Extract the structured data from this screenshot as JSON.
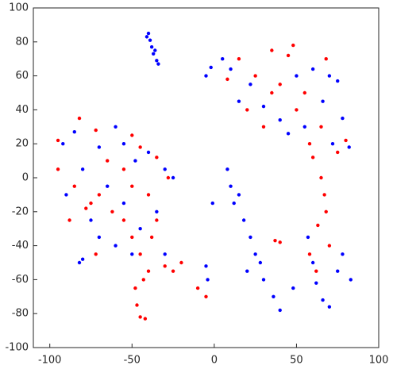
{
  "chart_data": {
    "type": "scatter",
    "xlim": [
      -110,
      100
    ],
    "ylim": [
      -100,
      100
    ],
    "xticks": [
      -100,
      -50,
      0,
      50,
      100
    ],
    "yticks": [
      -100,
      -80,
      -60,
      -40,
      -20,
      0,
      20,
      40,
      60,
      80,
      100
    ],
    "series": [
      {
        "color": "#0000ff",
        "x": [
          -40,
          -39,
          -38,
          -37,
          -35,
          -34,
          -41,
          -36,
          -5,
          -2,
          5,
          10,
          60,
          70,
          75,
          40,
          55,
          82,
          72,
          45,
          30,
          15,
          22,
          66,
          78,
          50,
          -92,
          -85,
          -70,
          -60,
          -55,
          -48,
          -40,
          -30,
          -25,
          -80,
          -90,
          -75,
          -65,
          -55,
          -45,
          -35,
          -60,
          -50,
          -70,
          -82,
          -80,
          -30,
          -5,
          -4,
          8,
          10,
          12,
          18,
          22,
          25,
          20,
          30,
          36,
          40,
          -1,
          15,
          57,
          60,
          62,
          66,
          70,
          75,
          78,
          83,
          48,
          28
        ],
        "y": [
          85,
          81,
          77,
          73,
          69,
          67,
          83,
          75,
          60,
          65,
          70,
          64,
          64,
          60,
          57,
          34,
          30,
          18,
          20,
          26,
          42,
          45,
          55,
          45,
          35,
          60,
          20,
          27,
          18,
          30,
          20,
          10,
          15,
          5,
          0,
          5,
          -10,
          -25,
          -5,
          -15,
          -30,
          -20,
          -40,
          -45,
          -35,
          -50,
          -48,
          -45,
          -52,
          -60,
          5,
          -5,
          -15,
          -25,
          -35,
          -45,
          -55,
          -60,
          -70,
          -78,
          -15,
          -10,
          -35,
          -50,
          -62,
          -72,
          -76,
          -55,
          -45,
          -60,
          -65,
          -50
        ]
      },
      {
        "color": "#ff0000",
        "x": [
          15,
          25,
          35,
          45,
          55,
          50,
          40,
          30,
          65,
          75,
          80,
          60,
          35,
          20,
          8,
          48,
          68,
          58,
          65,
          67,
          68,
          63,
          58,
          62,
          70,
          -48,
          -47,
          -45,
          -42,
          -25,
          -30,
          -40,
          -10,
          -5,
          37,
          40,
          -95,
          -82,
          -72,
          -50,
          -45,
          -35,
          -28,
          -95,
          -85,
          -78,
          -70,
          -62,
          -55,
          -40,
          -38,
          -45,
          -50,
          -65,
          -75,
          -88,
          -35,
          -55,
          -72,
          -50,
          -43,
          -20
        ],
        "y": [
          70,
          60,
          75,
          72,
          50,
          40,
          55,
          30,
          30,
          15,
          22,
          12,
          50,
          40,
          58,
          78,
          70,
          20,
          0,
          -10,
          -20,
          -28,
          -45,
          -55,
          -40,
          -65,
          -75,
          -82,
          -83,
          -55,
          -52,
          -55,
          -65,
          -70,
          -37,
          -38,
          22,
          35,
          28,
          25,
          18,
          12,
          0,
          5,
          -5,
          -18,
          -10,
          -20,
          -25,
          -10,
          -35,
          -45,
          -5,
          10,
          -15,
          -25,
          -25,
          5,
          -45,
          -35,
          -60,
          -50
        ]
      }
    ]
  }
}
